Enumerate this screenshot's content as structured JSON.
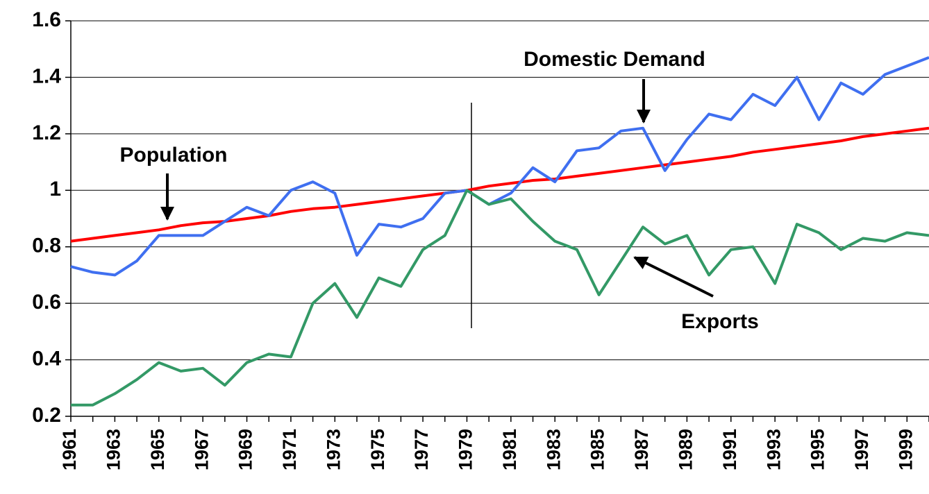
{
  "chart_data": {
    "type": "line",
    "categories": [
      "1961",
      null,
      "1963",
      null,
      "1965",
      null,
      "1967",
      null,
      "1969",
      null,
      "1971",
      null,
      "1973",
      null,
      "1975",
      null,
      "1977",
      null,
      "1979",
      null,
      "1981",
      null,
      "1983",
      null,
      "1985",
      null,
      "1987",
      null,
      "1989",
      null,
      "1991",
      null,
      "1993",
      null,
      "1995",
      null,
      "1997",
      null,
      "1999",
      null
    ],
    "series": [
      {
        "name": "Population",
        "color": "#ff0000",
        "values": [
          0.82,
          0.83,
          0.84,
          0.85,
          0.86,
          0.875,
          0.885,
          0.89,
          0.9,
          0.91,
          0.925,
          0.935,
          0.94,
          0.95,
          0.96,
          0.97,
          0.98,
          0.99,
          1.0,
          1.015,
          1.025,
          1.035,
          1.04,
          1.05,
          1.06,
          1.07,
          1.08,
          1.09,
          1.1,
          1.11,
          1.12,
          1.135,
          1.145,
          1.155,
          1.165,
          1.175,
          1.19,
          1.2,
          1.21,
          1.22
        ]
      },
      {
        "name": "Domestic Demand",
        "color": "#3f6ff0",
        "values": [
          0.73,
          0.71,
          0.7,
          0.75,
          0.84,
          0.84,
          0.84,
          0.89,
          0.94,
          0.91,
          1.0,
          1.03,
          0.99,
          0.77,
          0.88,
          0.87,
          0.9,
          0.99,
          1.0,
          0.95,
          0.99,
          1.08,
          1.03,
          1.14,
          1.15,
          1.21,
          1.22,
          1.07,
          1.18,
          1.27,
          1.25,
          1.34,
          1.3,
          1.4,
          1.25,
          1.38,
          1.34,
          1.41,
          1.44,
          1.47
        ]
      },
      {
        "name": "Exports",
        "color": "#339966",
        "values": [
          0.24,
          0.24,
          0.28,
          0.33,
          0.39,
          0.36,
          0.37,
          0.31,
          0.39,
          0.42,
          0.41,
          0.6,
          0.67,
          0.55,
          0.69,
          0.66,
          0.79,
          0.84,
          1.0,
          0.95,
          0.97,
          0.89,
          0.82,
          0.79,
          0.63,
          0.75,
          0.87,
          0.81,
          0.84,
          0.7,
          0.79,
          0.8,
          0.67,
          0.88,
          0.85,
          0.79,
          0.83,
          0.82,
          0.85,
          0.84
        ]
      }
    ],
    "ylim": [
      0.2,
      1.6
    ],
    "yticks": [
      0.2,
      0.4,
      0.6,
      0.8,
      1,
      1.2,
      1.4,
      1.6
    ],
    "grid": true
  }
}
